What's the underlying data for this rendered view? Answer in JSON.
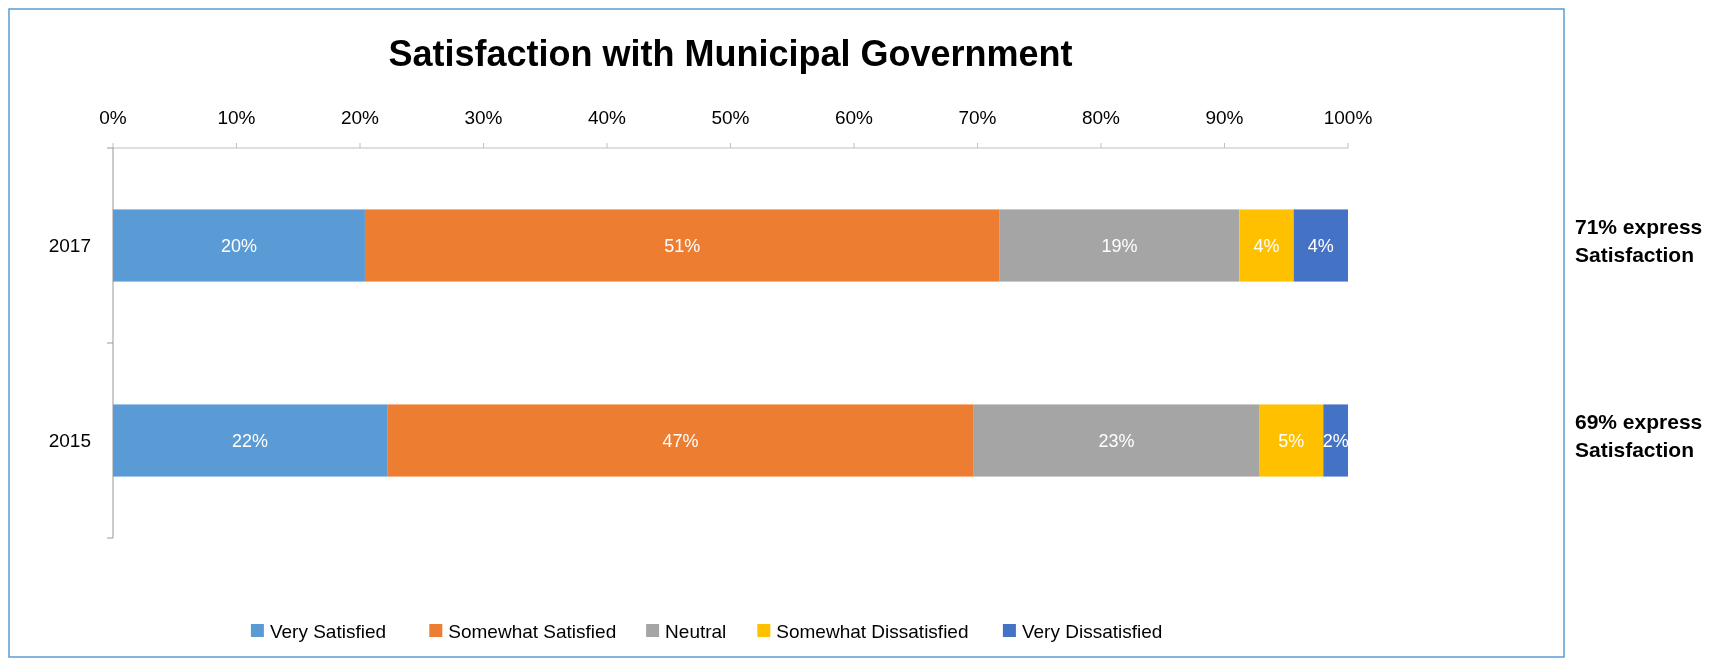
{
  "chart_data": {
    "type": "bar",
    "orientation": "horizontal",
    "stacked": true,
    "title": "Satisfaction with Municipal Government",
    "categories": [
      "2017",
      "2015"
    ],
    "series": [
      {
        "name": "Very Satisfied",
        "color": "#5b9bd5",
        "values": [
          20.4,
          22.2
        ],
        "value_labels": [
          "20%",
          "22%"
        ]
      },
      {
        "name": "Somewhat Satisfied",
        "color": "#ed7d31",
        "values": [
          51.4,
          47.5
        ],
        "value_labels": [
          "51%",
          "47%"
        ]
      },
      {
        "name": "Neutral",
        "color": "#a5a5a5",
        "values": [
          19.4,
          23.1
        ],
        "value_labels": [
          "19%",
          "23%"
        ]
      },
      {
        "name": "Somewhat Dissatisfied",
        "color": "#ffc000",
        "values": [
          4.4,
          5.2
        ],
        "value_labels": [
          "4%",
          "5%"
        ]
      },
      {
        "name": "Very Dissatisfied",
        "color": "#4472c4",
        "values": [
          4.4,
          2.0
        ],
        "value_labels": [
          "4%",
          "2%"
        ]
      }
    ],
    "xlim": [
      0,
      100
    ],
    "xticks": [
      {
        "value": 0,
        "label": "0%"
      },
      {
        "value": 10,
        "label": "10%"
      },
      {
        "value": 20,
        "label": "20%"
      },
      {
        "value": 30,
        "label": "30%"
      },
      {
        "value": 40,
        "label": "40%"
      },
      {
        "value": 50,
        "label": "50%"
      },
      {
        "value": 60,
        "label": "60%"
      },
      {
        "value": 70,
        "label": "70%"
      },
      {
        "value": 80,
        "label": "80%"
      },
      {
        "value": 90,
        "label": "90%"
      },
      {
        "value": 100,
        "label": "100%"
      }
    ],
    "annotations": [
      "71% express Satisfaction",
      "69% express Satisfaction"
    ],
    "legend": "bottom",
    "grid": false
  }
}
